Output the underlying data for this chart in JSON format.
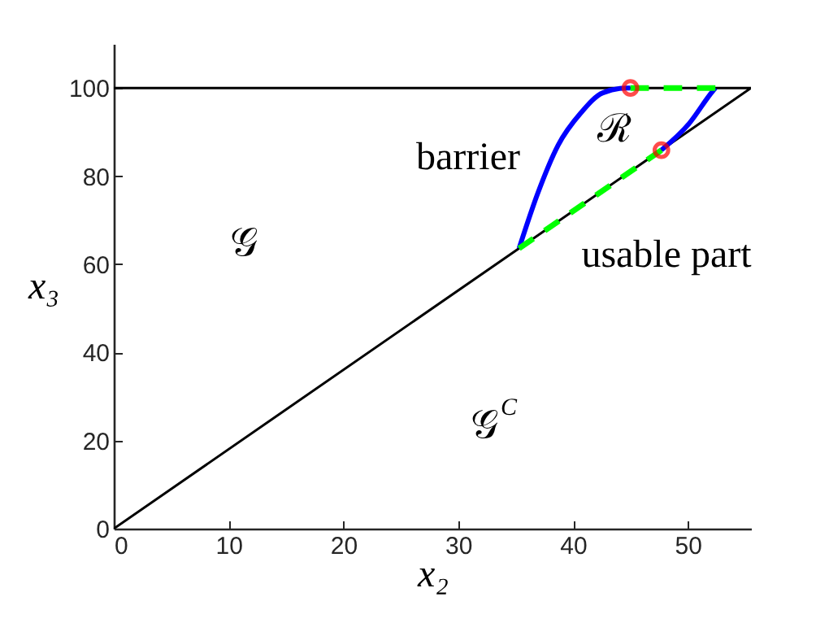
{
  "chart_data": {
    "type": "line",
    "xlabel": "x₂",
    "ylabel": "x₃",
    "xlim": [
      0,
      55.5
    ],
    "ylim": [
      0,
      110
    ],
    "xticks": [
      0,
      10,
      20,
      30,
      40,
      50
    ],
    "yticks": [
      0,
      20,
      40,
      60,
      80,
      100
    ],
    "grid": false,
    "series": [
      {
        "color": "#000000",
        "x": [
          0,
          55.5,
          0
        ],
        "values": [
          100,
          100,
          0
        ]
      },
      {
        "color": "#0000ff",
        "x": [
          35.3,
          36.9,
          38.7,
          40.7,
          42.6,
          44.7,
          45
        ],
        "values": [
          63.6,
          75.9,
          87,
          94.4,
          98.9,
          100,
          100
        ]
      },
      {
        "color": "#0000ff",
        "x": [
          47.7,
          50.1,
          52.2,
          52.4
        ],
        "values": [
          85.9,
          91.9,
          99.4,
          100
        ]
      },
      {
        "color": "#00ff00",
        "line_style": "dashed",
        "x": [
          35.3,
          47.7
        ],
        "values": [
          63.6,
          85.9
        ]
      },
      {
        "color": "#00ff00",
        "line_style": "dashed",
        "x": [
          45,
          52.4
        ],
        "values": [
          100,
          100
        ]
      },
      {
        "type": "scatter",
        "color": "#ff0000",
        "marker": "circle",
        "x": [
          45,
          47.7
        ],
        "values": [
          100,
          85.9
        ]
      }
    ],
    "annotations": [
      "barrier",
      "ℛ",
      "usable part",
      "𝒢",
      "𝒢$^{C}$"
    ]
  }
}
